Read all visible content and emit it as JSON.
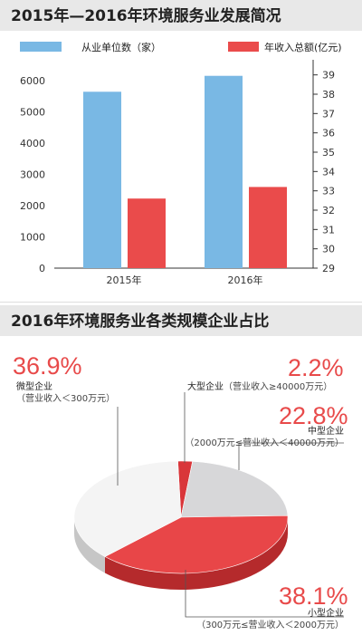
{
  "chart_data": [
    {
      "type": "bar",
      "title": "2015年—2016年环境服务业发展简况",
      "categories": [
        "2015年",
        "2016年"
      ],
      "series": [
        {
          "name": "从业单位数（家）",
          "axis": "left",
          "color": "#79b8e4",
          "values": [
            5650,
            6160
          ]
        },
        {
          "name": "年收入总额(亿元)",
          "axis": "right",
          "color": "#ea4b4b",
          "values": [
            32.6,
            33.2
          ]
        }
      ],
      "ylim_left": [
        0,
        6500
      ],
      "yticks_left": [
        "0",
        "1000",
        "2000",
        "3000",
        "4000",
        "5000",
        "6000"
      ],
      "ylim_right": [
        29,
        39.5
      ],
      "yticks_right": [
        "29",
        "30",
        "31",
        "32",
        "33",
        "34",
        "35",
        "36",
        "37",
        "38",
        "39"
      ],
      "legend_position": "top",
      "grid": false
    },
    {
      "type": "pie",
      "title": "2016年环境服务业各类规模企业占比",
      "slices": [
        {
          "percent_label": "2.2%",
          "value": 2.2,
          "name": "大型企业",
          "condition": "（营业收入≥40000万元）",
          "color": "#d9363a"
        },
        {
          "percent_label": "22.8%",
          "value": 22.8,
          "name": "中型企业",
          "condition": "（2000万元≤营业收入＜40000万元）",
          "color": "#d7d7d9"
        },
        {
          "percent_label": "38.1%",
          "value": 38.1,
          "name": "小型企业",
          "condition": "（300万元≤营业收入＜2000万元）",
          "color": "#e84648"
        },
        {
          "percent_label": "36.9%",
          "value": 36.9,
          "name": "微型企业",
          "condition": "（营业收入＜300万元）",
          "color": "#f4f4f4"
        }
      ]
    }
  ]
}
